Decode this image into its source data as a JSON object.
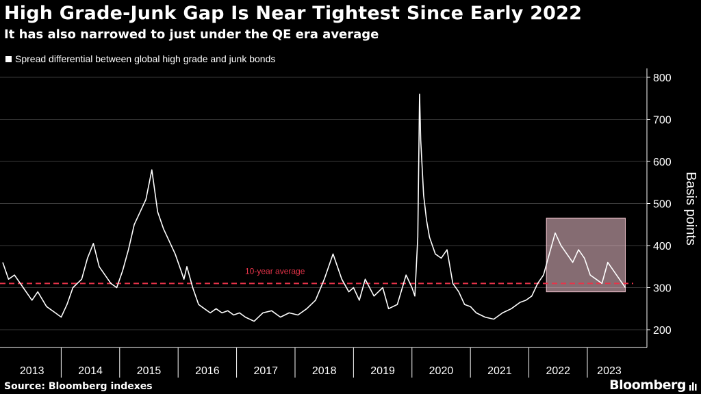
{
  "header": {
    "title": "High Grade-Junk Gap Is Near Tightest Since Early 2022",
    "subtitle": "It has also narrowed to just under the QE era average"
  },
  "footer": {
    "source": "Source: Bloomberg indexes",
    "brand": "Bloomberg"
  },
  "colors": {
    "background": "#000000",
    "line": "#ffffff",
    "average": "#e8344a",
    "highlight": "#f2c4cf"
  },
  "chart_data": {
    "type": "line",
    "title": "High Grade-Junk Gap Is Near Tightest Since Early 2022",
    "subtitle": "It has also narrowed to just under the QE era average",
    "ylabel": "Basis points",
    "xlabel": "",
    "ylim": [
      160,
      820
    ],
    "xlim": [
      2013.0,
      2023.75
    ],
    "yticks": [
      200,
      300,
      400,
      500,
      600,
      700,
      800
    ],
    "xticks": [
      "2013",
      "2014",
      "2015",
      "2016",
      "2017",
      "2018",
      "2019",
      "2020",
      "2021",
      "2022",
      "2023"
    ],
    "grid": true,
    "legend_position": "top-left",
    "series": [
      {
        "name": "Spread differential between global high grade and junk bonds",
        "x": [
          2013.0,
          2013.1,
          2013.2,
          2013.35,
          2013.5,
          2013.6,
          2013.75,
          2013.9,
          2014.0,
          2014.1,
          2014.2,
          2014.35,
          2014.45,
          2014.55,
          2014.65,
          2014.75,
          2014.85,
          2014.95,
          2015.05,
          2015.15,
          2015.25,
          2015.35,
          2015.45,
          2015.55,
          2015.65,
          2015.75,
          2015.85,
          2015.95,
          2016.05,
          2016.1,
          2016.15,
          2016.25,
          2016.35,
          2016.45,
          2016.55,
          2016.65,
          2016.75,
          2016.85,
          2016.95,
          2017.05,
          2017.15,
          2017.3,
          2017.45,
          2017.6,
          2017.75,
          2017.9,
          2018.05,
          2018.2,
          2018.35,
          2018.5,
          2018.65,
          2018.8,
          2018.92,
          2019.0,
          2019.1,
          2019.2,
          2019.35,
          2019.5,
          2019.6,
          2019.75,
          2019.9,
          2020.0,
          2020.05,
          2020.1,
          2020.13,
          2020.15,
          2020.2,
          2020.25,
          2020.3,
          2020.4,
          2020.5,
          2020.6,
          2020.7,
          2020.8,
          2020.9,
          2021.0,
          2021.1,
          2021.25,
          2021.4,
          2021.55,
          2021.7,
          2021.85,
          2021.95,
          2022.05,
          2022.15,
          2022.25,
          2022.35,
          2022.45,
          2022.55,
          2022.65,
          2022.75,
          2022.85,
          2022.95,
          2023.05,
          2023.15,
          2023.25,
          2023.35,
          2023.45,
          2023.55,
          2023.65
        ],
        "values": [
          360,
          320,
          330,
          300,
          270,
          290,
          255,
          240,
          230,
          260,
          300,
          320,
          370,
          405,
          350,
          330,
          310,
          300,
          340,
          390,
          450,
          480,
          510,
          580,
          480,
          440,
          410,
          380,
          340,
          320,
          350,
          300,
          260,
          250,
          240,
          250,
          240,
          245,
          235,
          240,
          230,
          220,
          240,
          245,
          230,
          240,
          235,
          250,
          270,
          320,
          380,
          320,
          290,
          300,
          270,
          320,
          280,
          300,
          250,
          260,
          330,
          300,
          280,
          420,
          760,
          650,
          520,
          460,
          420,
          380,
          370,
          390,
          310,
          290,
          260,
          255,
          240,
          230,
          225,
          240,
          250,
          265,
          270,
          280,
          310,
          330,
          380,
          430,
          400,
          380,
          360,
          390,
          370,
          330,
          320,
          310,
          360,
          340,
          320,
          300
        ]
      }
    ],
    "reference_lines": [
      {
        "label": "10-year average",
        "value": 310
      }
    ],
    "highlight_region": {
      "x": [
        2022.3,
        2023.65
      ],
      "y": [
        290,
        465
      ]
    }
  }
}
